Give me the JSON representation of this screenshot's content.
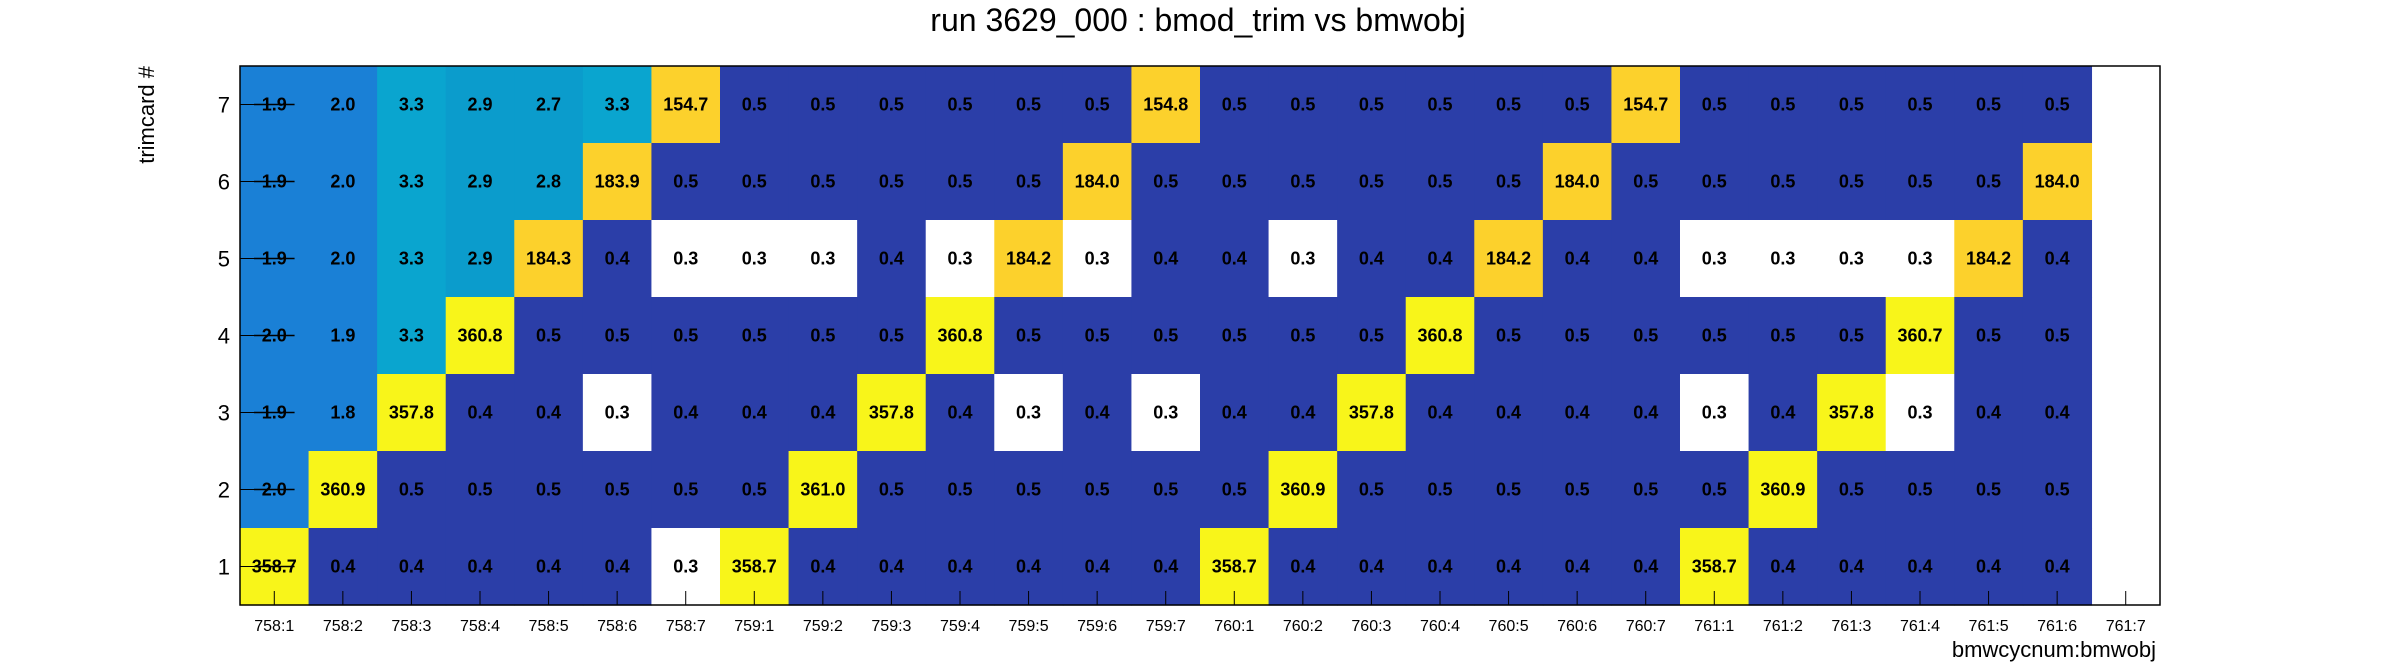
{
  "chart_data": {
    "type": "heatmap",
    "title": "run 3629_000 : bmod_trim vs bmwobj",
    "xlabel": "bmwcycnum:bmwobj",
    "ylabel": "trimcard #",
    "categories": [
      "758:1",
      "758:2",
      "758:3",
      "758:4",
      "758:5",
      "758:6",
      "758:7",
      "759:1",
      "759:2",
      "759:3",
      "759:4",
      "759:5",
      "759:6",
      "759:7",
      "760:1",
      "760:2",
      "760:3",
      "760:4",
      "760:5",
      "760:6",
      "760:7",
      "761:1",
      "761:2",
      "761:3",
      "761:4",
      "761:5",
      "761:6",
      "761:7"
    ],
    "y_categories": [
      "1",
      "2",
      "3",
      "4",
      "5",
      "6",
      "7"
    ],
    "rows": [
      {
        "y": "7",
        "values": [
          "1.9",
          "2.0",
          "3.3",
          "2.9",
          "2.7",
          "3.3",
          "154.7",
          "0.5",
          "0.5",
          "0.5",
          "0.5",
          "0.5",
          "0.5",
          "154.8",
          "0.5",
          "0.5",
          "0.5",
          "0.5",
          "0.5",
          "0.5",
          "154.7",
          "0.5",
          "0.5",
          "0.5",
          "0.5",
          "0.5",
          "0.5",
          null
        ]
      },
      {
        "y": "6",
        "values": [
          "1.9",
          "2.0",
          "3.3",
          "2.9",
          "2.8",
          "183.9",
          "0.5",
          "0.5",
          "0.5",
          "0.5",
          "0.5",
          "0.5",
          "184.0",
          "0.5",
          "0.5",
          "0.5",
          "0.5",
          "0.5",
          "0.5",
          "184.0",
          "0.5",
          "0.5",
          "0.5",
          "0.5",
          "0.5",
          "0.5",
          "184.0",
          null
        ]
      },
      {
        "y": "5",
        "values": [
          "1.9",
          "2.0",
          "3.3",
          "2.9",
          "184.3",
          "0.4",
          "0.3",
          "0.3",
          "0.3",
          "0.4",
          "0.3",
          "184.2",
          "0.3",
          "0.4",
          "0.4",
          "0.3",
          "0.4",
          "0.4",
          "184.2",
          "0.4",
          "0.4",
          "0.3",
          "0.3",
          "0.3",
          "0.3",
          "184.2",
          "0.4",
          null
        ]
      },
      {
        "y": "4",
        "values": [
          "2.0",
          "1.9",
          "3.3",
          "360.8",
          "0.5",
          "0.5",
          "0.5",
          "0.5",
          "0.5",
          "0.5",
          "360.8",
          "0.5",
          "0.5",
          "0.5",
          "0.5",
          "0.5",
          "0.5",
          "360.8",
          "0.5",
          "0.5",
          "0.5",
          "0.5",
          "0.5",
          "0.5",
          "360.7",
          "0.5",
          "0.5",
          null
        ]
      },
      {
        "y": "3",
        "values": [
          "1.9",
          "1.8",
          "357.8",
          "0.4",
          "0.4",
          "0.3",
          "0.4",
          "0.4",
          "0.4",
          "357.8",
          "0.4",
          "0.3",
          "0.4",
          "0.3",
          "0.4",
          "0.4",
          "357.8",
          "0.4",
          "0.4",
          "0.4",
          "0.4",
          "0.3",
          "0.4",
          "357.8",
          "0.3",
          "0.4",
          "0.4",
          null
        ]
      },
      {
        "y": "2",
        "values": [
          "2.0",
          "360.9",
          "0.5",
          "0.5",
          "0.5",
          "0.5",
          "0.5",
          "0.5",
          "361.0",
          "0.5",
          "0.5",
          "0.5",
          "0.5",
          "0.5",
          "0.5",
          "360.9",
          "0.5",
          "0.5",
          "0.5",
          "0.5",
          "0.5",
          "0.5",
          "360.9",
          "0.5",
          "0.5",
          "0.5",
          "0.5",
          null
        ]
      },
      {
        "y": "1",
        "values": [
          "358.7",
          "0.4",
          "0.4",
          "0.4",
          "0.4",
          "0.4",
          "0.3",
          "358.7",
          "0.4",
          "0.4",
          "0.4",
          "0.4",
          "0.4",
          "0.4",
          "358.7",
          "0.4",
          "0.4",
          "0.4",
          "0.4",
          "0.4",
          "0.4",
          "358.7",
          "0.4",
          "0.4",
          "0.4",
          "0.4",
          "0.4",
          null
        ]
      }
    ],
    "struck_column": "758:1",
    "grid": false,
    "colors": {
      "low": "#ffffff",
      "mid": "#2b3ea8",
      "cyan_1_9": "#1a80d6",
      "cyan_2_9": "#0b9ccc",
      "cyan_3_3": "#0aa5cf",
      "orange": "#fcd12c",
      "yellow": "#f8f51a",
      "frame": "#000000"
    }
  }
}
